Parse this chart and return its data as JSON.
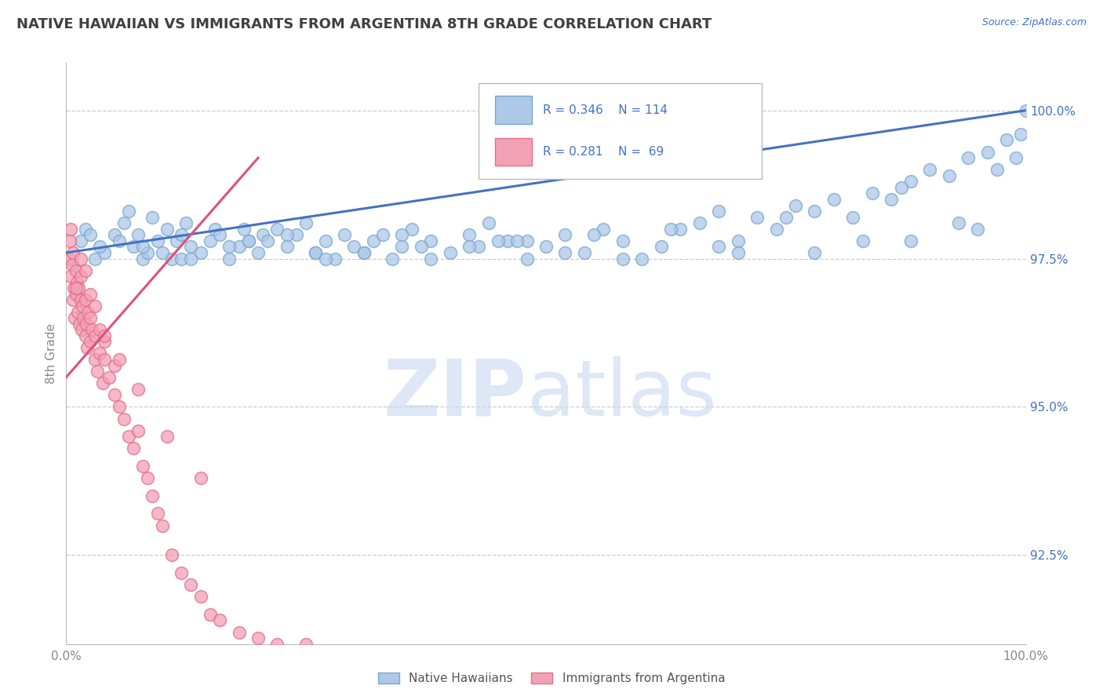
{
  "title": "NATIVE HAWAIIAN VS IMMIGRANTS FROM ARGENTINA 8TH GRADE CORRELATION CHART",
  "source_text": "Source: ZipAtlas.com",
  "ylabel": "8th Grade",
  "y_ticks": [
    92.5,
    95.0,
    97.5,
    100.0
  ],
  "legend_blue_R": "R = 0.346",
  "legend_blue_N": "N = 114",
  "legend_pink_R": "R = 0.281",
  "legend_pink_N": "N = 69",
  "legend_blue_label": "Native Hawaiians",
  "legend_pink_label": "Immigrants from Argentina",
  "blue_color": "#adc8e8",
  "pink_color": "#f4a0b5",
  "blue_edge_color": "#7aa8d0",
  "pink_edge_color": "#e07090",
  "blue_line_color": "#4472c4",
  "pink_line_color": "#e0507a",
  "legend_text_color": "#4472c4",
  "title_color": "#404040",
  "axis_color": "#888888",
  "grid_color": "#cccccc",
  "watermark_zip_color": "#c8d8f0",
  "watermark_atlas_color": "#c8d8f0",
  "xlim": [
    0,
    100
  ],
  "ylim": [
    91.0,
    100.8
  ],
  "blue_scatter_x": [
    1.5,
    2.0,
    3.0,
    4.0,
    5.0,
    6.0,
    6.5,
    7.0,
    7.5,
    8.0,
    9.0,
    9.5,
    10.0,
    10.5,
    11.0,
    11.5,
    12.0,
    12.5,
    13.0,
    14.0,
    15.0,
    15.5,
    16.0,
    17.0,
    18.0,
    18.5,
    19.0,
    20.0,
    20.5,
    21.0,
    22.0,
    23.0,
    24.0,
    25.0,
    26.0,
    27.0,
    28.0,
    29.0,
    30.0,
    31.0,
    32.0,
    33.0,
    34.0,
    35.0,
    36.0,
    38.0,
    40.0,
    42.0,
    43.0,
    44.0,
    46.0,
    48.0,
    50.0,
    52.0,
    54.0,
    56.0,
    58.0,
    60.0,
    62.0,
    64.0,
    66.0,
    68.0,
    70.0,
    72.0,
    74.0,
    76.0,
    78.0,
    80.0,
    82.0,
    84.0,
    86.0,
    88.0,
    90.0,
    92.0,
    94.0,
    96.0,
    97.0,
    98.0,
    99.0,
    99.5,
    100.0,
    87.0,
    75.0,
    63.0,
    52.0,
    45.0,
    38.0,
    31.0,
    23.0,
    17.0,
    12.0,
    8.5,
    5.5,
    3.5,
    2.5,
    8.0,
    13.0,
    19.0,
    26.0,
    35.0,
    48.0,
    58.0,
    68.0,
    78.0,
    88.0,
    95.0,
    42.0,
    55.0,
    70.0,
    83.0,
    93.0,
    27.0,
    37.0,
    47.0
  ],
  "blue_scatter_y": [
    97.8,
    98.0,
    97.5,
    97.6,
    97.9,
    98.1,
    98.3,
    97.7,
    97.9,
    97.5,
    98.2,
    97.8,
    97.6,
    98.0,
    97.5,
    97.8,
    97.9,
    98.1,
    97.7,
    97.6,
    97.8,
    98.0,
    97.9,
    97.5,
    97.7,
    98.0,
    97.8,
    97.6,
    97.9,
    97.8,
    98.0,
    97.7,
    97.9,
    98.1,
    97.6,
    97.8,
    97.5,
    97.9,
    97.7,
    97.6,
    97.8,
    97.9,
    97.5,
    97.7,
    98.0,
    97.8,
    97.6,
    97.9,
    97.7,
    98.1,
    97.8,
    97.5,
    97.7,
    97.9,
    97.6,
    98.0,
    97.8,
    97.5,
    97.7,
    98.0,
    98.1,
    98.3,
    97.8,
    98.2,
    98.0,
    98.4,
    98.3,
    98.5,
    98.2,
    98.6,
    98.5,
    98.8,
    99.0,
    98.9,
    99.2,
    99.3,
    99.0,
    99.5,
    99.2,
    99.6,
    100.0,
    98.7,
    98.2,
    98.0,
    97.6,
    97.8,
    97.5,
    97.6,
    97.9,
    97.7,
    97.5,
    97.6,
    97.8,
    97.7,
    97.9,
    97.7,
    97.5,
    97.8,
    97.6,
    97.9,
    97.8,
    97.5,
    97.7,
    97.6,
    97.8,
    98.0,
    97.7,
    97.9,
    97.6,
    97.8,
    98.1,
    97.5,
    97.7,
    97.8
  ],
  "pink_scatter_x": [
    0.3,
    0.4,
    0.5,
    0.5,
    0.6,
    0.7,
    0.7,
    0.8,
    0.9,
    1.0,
    1.0,
    1.1,
    1.2,
    1.3,
    1.4,
    1.5,
    1.5,
    1.6,
    1.7,
    1.8,
    2.0,
    2.0,
    2.1,
    2.2,
    2.3,
    2.5,
    2.5,
    2.7,
    3.0,
    3.0,
    3.2,
    3.5,
    3.5,
    3.8,
    4.0,
    4.0,
    4.5,
    5.0,
    5.0,
    5.5,
    6.0,
    6.5,
    7.0,
    7.5,
    8.0,
    8.5,
    9.0,
    9.5,
    10.0,
    11.0,
    12.0,
    13.0,
    14.0,
    15.0,
    16.0,
    18.0,
    20.0,
    22.0,
    25.0,
    1.0,
    1.5,
    2.0,
    2.5,
    3.0,
    4.0,
    5.5,
    7.5,
    10.5,
    14.0
  ],
  "pink_scatter_y": [
    97.5,
    97.8,
    97.2,
    98.0,
    97.4,
    96.8,
    97.6,
    97.0,
    96.5,
    96.9,
    97.3,
    97.1,
    96.6,
    97.0,
    96.4,
    96.8,
    97.2,
    96.3,
    96.7,
    96.5,
    96.2,
    96.8,
    96.4,
    96.0,
    96.6,
    96.1,
    96.5,
    96.3,
    95.8,
    96.2,
    95.6,
    95.9,
    96.3,
    95.4,
    95.8,
    96.1,
    95.5,
    95.2,
    95.7,
    95.0,
    94.8,
    94.5,
    94.3,
    94.6,
    94.0,
    93.8,
    93.5,
    93.2,
    93.0,
    92.5,
    92.2,
    92.0,
    91.8,
    91.5,
    91.4,
    91.2,
    91.1,
    91.0,
    91.0,
    97.0,
    97.5,
    97.3,
    96.9,
    96.7,
    96.2,
    95.8,
    95.3,
    94.5,
    93.8
  ],
  "pink_trend_start_x": 0.0,
  "pink_trend_end_x": 20.0,
  "pink_trend_start_y": 95.5,
  "pink_trend_end_y": 99.2
}
